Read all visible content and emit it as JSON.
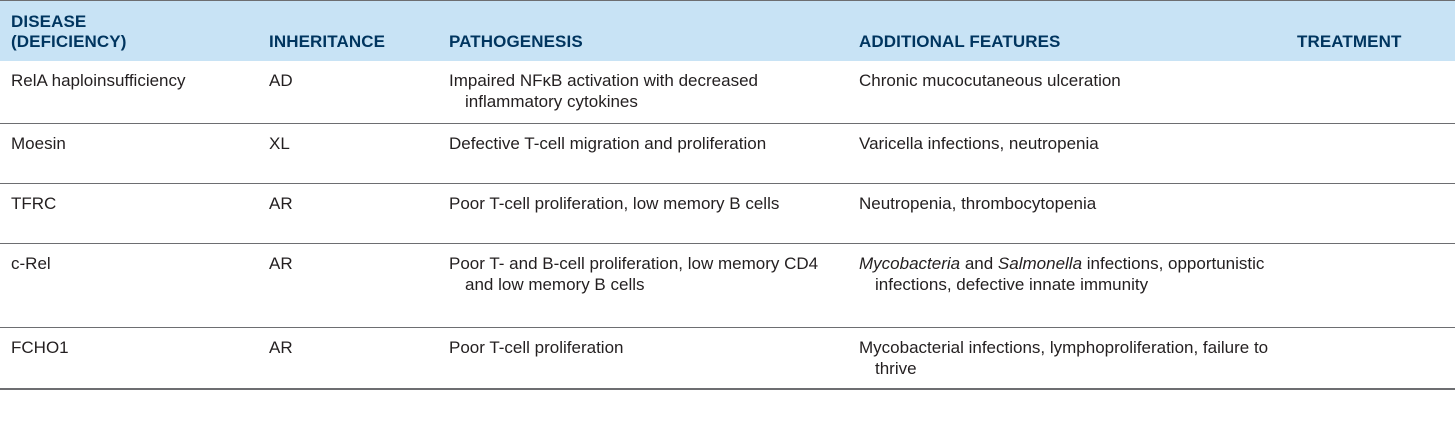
{
  "table": {
    "headers": {
      "disease_line1": "DISEASE",
      "disease_line2": "(DEFICIENCY)",
      "inheritance": "INHERITANCE",
      "pathogenesis": "PATHOGENESIS",
      "additional_features": "ADDITIONAL FEATURES",
      "treatment": "TREATMENT"
    },
    "rows": [
      {
        "disease": "RelA haploinsufficiency",
        "inheritance": "AD",
        "pathogenesis": "Impaired NFκB activation with decreased inflammatory cytokines",
        "features_pre": "Chronic mucocutaneous ulceration",
        "treatment": ""
      },
      {
        "disease": "Moesin",
        "inheritance": "XL",
        "pathogenesis": "Defective T-cell migration and proliferation",
        "features_pre": "Varicella infections, neutropenia",
        "treatment": ""
      },
      {
        "disease": "TFRC",
        "inheritance": "AR",
        "pathogenesis": "Poor T-cell proliferation, low memory B cells",
        "features_pre": "Neutropenia, thrombocytopenia",
        "treatment": ""
      },
      {
        "disease": "c-Rel",
        "inheritance": "AR",
        "pathogenesis": "Poor T- and B-cell proliferation, low memory CD4 and low memory B cells",
        "features_italic1": "Mycobacteria",
        "features_mid": " and ",
        "features_italic2": "Salmonella",
        "features_post": " infections, opportunistic infections, defective innate immunity",
        "treatment": ""
      },
      {
        "disease": "FCHO1",
        "inheritance": "AR",
        "pathogenesis": "Poor T-cell proliferation",
        "features_pre": "Mycobacterial infections, lymphoproliferation, failure to thrive",
        "treatment": ""
      }
    ]
  }
}
